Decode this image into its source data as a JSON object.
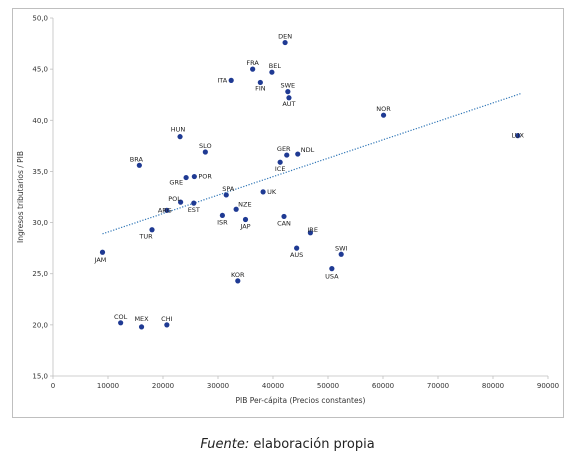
{
  "chart_data": {
    "type": "scatter",
    "xlabel": "PIB Per-cápita (Precios constantes)",
    "ylabel": "Ingresos tributarios / PIB",
    "xlim": [
      0,
      90000
    ],
    "ylim": [
      15,
      50
    ],
    "x_ticks": [
      "0",
      "10000",
      "20000",
      "30000",
      "40000",
      "50000",
      "60000",
      "70000",
      "80000",
      "90000"
    ],
    "y_ticks": [
      "15,0",
      "20,0",
      "25,0",
      "30,0",
      "35,0",
      "40,0",
      "45,0",
      "50,0"
    ],
    "grid": false,
    "trendline": {
      "style": "dotted",
      "x1": 9000,
      "y1": 28.9,
      "x2": 85000,
      "y2": 42.6
    },
    "marker_color": "#1f3a93",
    "trend_color": "#2e75b6",
    "points": [
      {
        "label": "DEN",
        "x": 42200,
        "y": 47.6
      },
      {
        "label": "FRA",
        "x": 36300,
        "y": 45.0
      },
      {
        "label": "BEL",
        "x": 39800,
        "y": 44.7
      },
      {
        "label": "ITA",
        "x": 32400,
        "y": 43.9
      },
      {
        "label": "FIN",
        "x": 37700,
        "y": 43.7
      },
      {
        "label": "SWE",
        "x": 42700,
        "y": 42.8
      },
      {
        "label": "AUT",
        "x": 42900,
        "y": 42.2
      },
      {
        "label": "NOR",
        "x": 60100,
        "y": 40.5
      },
      {
        "label": "LUX",
        "x": 84500,
        "y": 38.5
      },
      {
        "label": "HUN",
        "x": 23100,
        "y": 38.4
      },
      {
        "label": "SLO",
        "x": 27700,
        "y": 36.9
      },
      {
        "label": "GER",
        "x": 42500,
        "y": 36.6
      },
      {
        "label": "NDL",
        "x": 44500,
        "y": 36.7
      },
      {
        "label": "BRA",
        "x": 15700,
        "y": 35.6
      },
      {
        "label": "ICE",
        "x": 41300,
        "y": 35.9
      },
      {
        "label": "POR",
        "x": 25700,
        "y": 34.5
      },
      {
        "label": "GRE",
        "x": 24200,
        "y": 34.4
      },
      {
        "label": "SPA",
        "x": 31500,
        "y": 32.7
      },
      {
        "label": "UK",
        "x": 38200,
        "y": 33.0
      },
      {
        "label": "POL",
        "x": 23200,
        "y": 32.0
      },
      {
        "label": "EST",
        "x": 25600,
        "y": 31.9
      },
      {
        "label": "NZE",
        "x": 33300,
        "y": 31.3
      },
      {
        "label": "ARG",
        "x": 20700,
        "y": 31.2
      },
      {
        "label": "ISR",
        "x": 30800,
        "y": 30.7
      },
      {
        "label": "CAN",
        "x": 42000,
        "y": 30.6
      },
      {
        "label": "JAP",
        "x": 35000,
        "y": 30.3
      },
      {
        "label": "IRE",
        "x": 46800,
        "y": 29.0
      },
      {
        "label": "TUR",
        "x": 18000,
        "y": 29.3
      },
      {
        "label": "AUS",
        "x": 44300,
        "y": 27.5
      },
      {
        "label": "JAM",
        "x": 9000,
        "y": 27.1
      },
      {
        "label": "SWI",
        "x": 52400,
        "y": 26.9
      },
      {
        "label": "USA",
        "x": 50700,
        "y": 25.5
      },
      {
        "label": "KOR",
        "x": 33600,
        "y": 24.3
      },
      {
        "label": "COL",
        "x": 12300,
        "y": 20.2
      },
      {
        "label": "MEX",
        "x": 16100,
        "y": 19.8
      },
      {
        "label": "CHI",
        "x": 20700,
        "y": 20.0
      }
    ]
  },
  "caption": {
    "source_label": "Fuente:",
    "source_text": " elaboración propia"
  }
}
